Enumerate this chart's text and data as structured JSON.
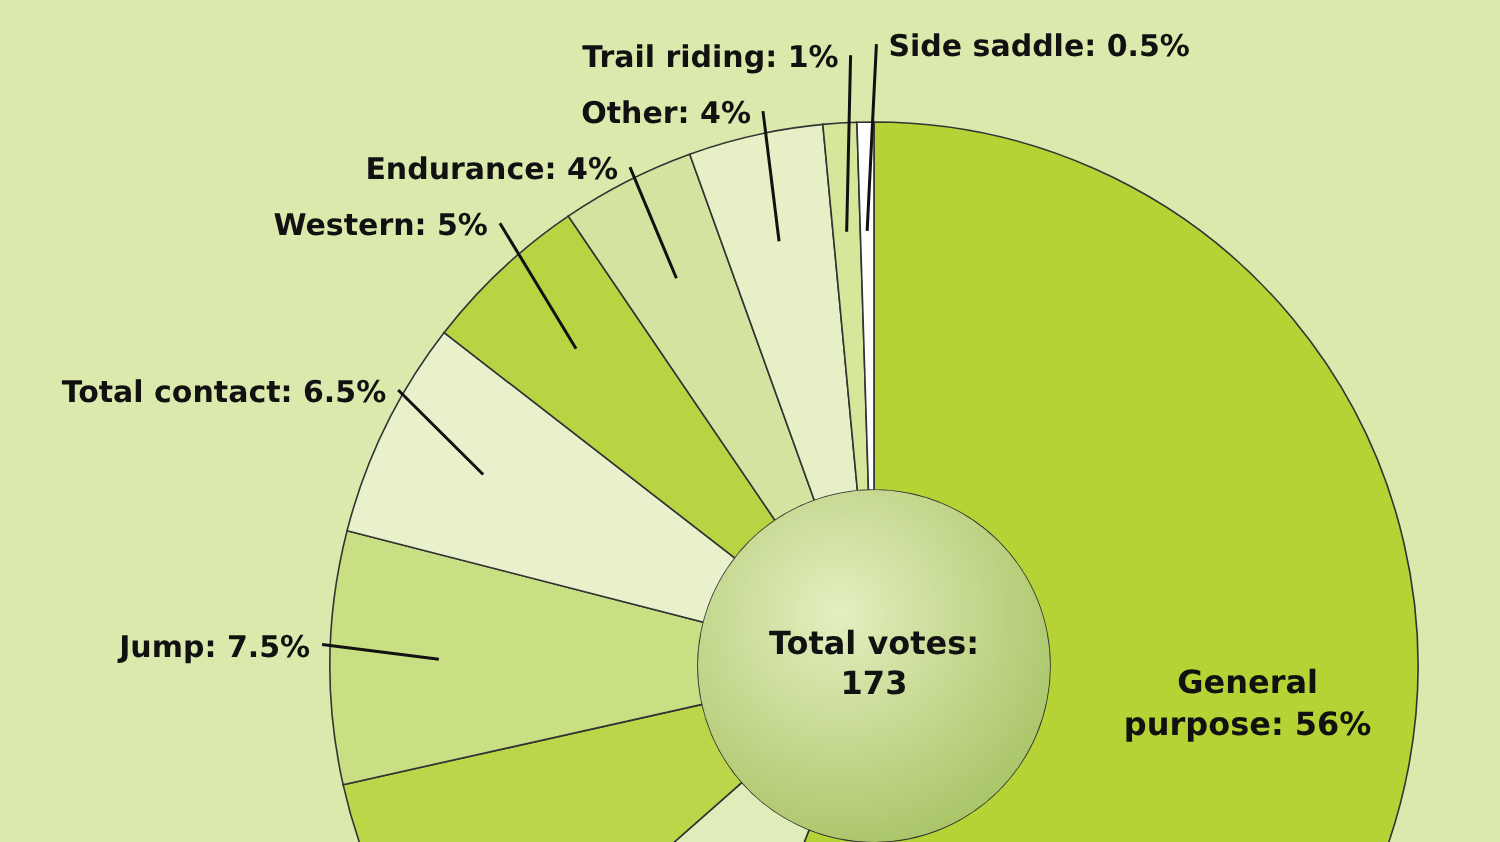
{
  "chart_data": {
    "type": "donut",
    "categories": [
      "General purpose",
      null,
      null,
      "Jump",
      "Total contact",
      "Western",
      "Endurance",
      "Other",
      "Trail riding",
      "Side saddle"
    ],
    "value_labels": [
      "56%",
      null,
      null,
      "7.5%",
      "6.5%",
      "5%",
      "4%",
      "4%",
      "1%",
      "0.5%"
    ],
    "values": [
      56,
      7.5,
      8,
      7.5,
      6.5,
      5,
      4,
      4,
      1,
      0.5
    ],
    "colors": [
      "#b5d334",
      "#e0ecba",
      "#bcd64a",
      "#c9df84",
      "#e8f0cc",
      "#b9d442",
      "#d4e4a0",
      "#e6efc5",
      "#d4e79a",
      "#ffffff"
    ],
    "annotations": [
      "Total votes: 173"
    ]
  }
}
